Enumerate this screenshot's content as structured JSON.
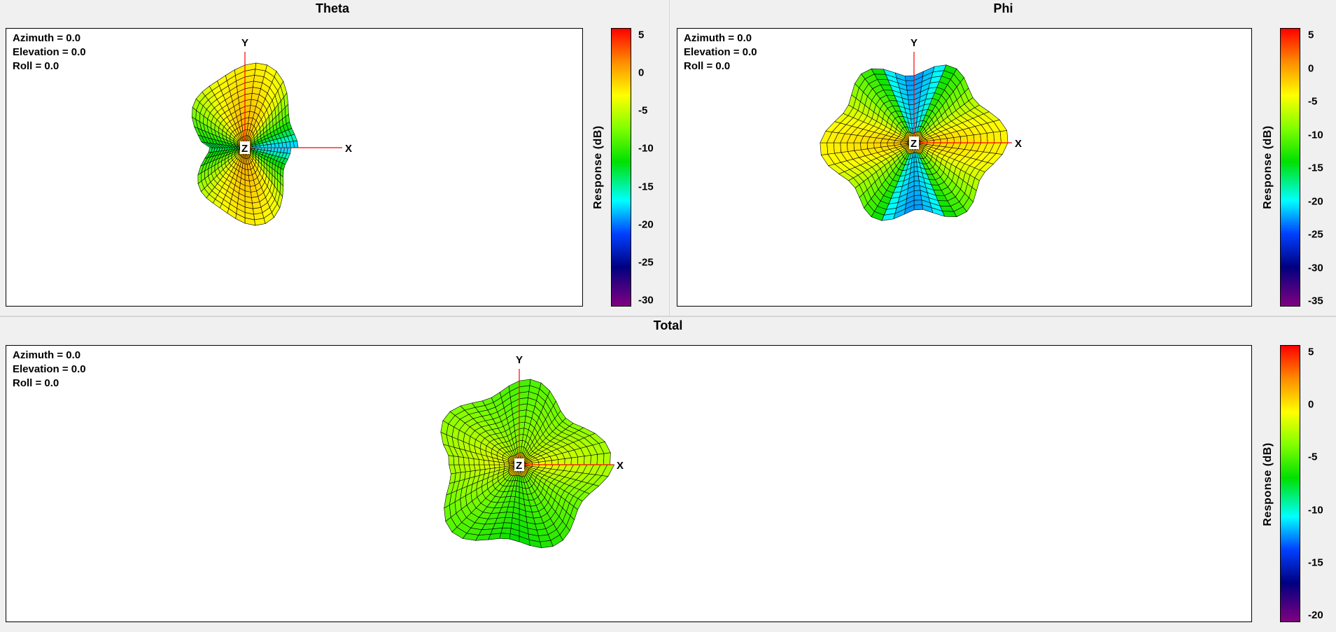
{
  "panels": [
    {
      "id": "theta",
      "title": "Theta",
      "orientation": [
        "Azimuth = 0.0",
        "Elevation = 0.0",
        "Roll = 0.0"
      ],
      "axes": {
        "x": "X",
        "y": "Y",
        "z": "Z"
      },
      "colorbar": {
        "title": "Response  (dB)",
        "ticks": [
          "5",
          "0",
          "-5",
          "-10",
          "-15",
          "-20",
          "-25",
          "-30"
        ]
      }
    },
    {
      "id": "phi",
      "title": "Phi",
      "orientation": [
        "Azimuth = 0.0",
        "Elevation = 0.0",
        "Roll = 0.0"
      ],
      "axes": {
        "x": "X",
        "y": "Y",
        "z": "Z"
      },
      "colorbar": {
        "title": "Response  (dB)",
        "ticks": [
          "5",
          "0",
          "-5",
          "-10",
          "-15",
          "-20",
          "-25",
          "-30",
          "-35"
        ]
      }
    },
    {
      "id": "total",
      "title": "Total",
      "orientation": [
        "Azimuth = 0.0",
        "Elevation = 0.0",
        "Roll = 0.0"
      ],
      "axes": {
        "x": "X",
        "y": "Y",
        "z": "Z"
      },
      "colorbar": {
        "title": "Response  (dB)",
        "ticks": [
          "5",
          "0",
          "-5",
          "-10",
          "-15",
          "-20"
        ]
      }
    }
  ],
  "colors": {
    "axis_line": "#ff0000",
    "mesh_line": "#000000",
    "surface_hot": "#ff6a00",
    "surface_warm": "#ffd800",
    "surface_mid": "#80e000",
    "surface_cool": "#30e0e0",
    "surface_cold": "#0050ff"
  }
}
